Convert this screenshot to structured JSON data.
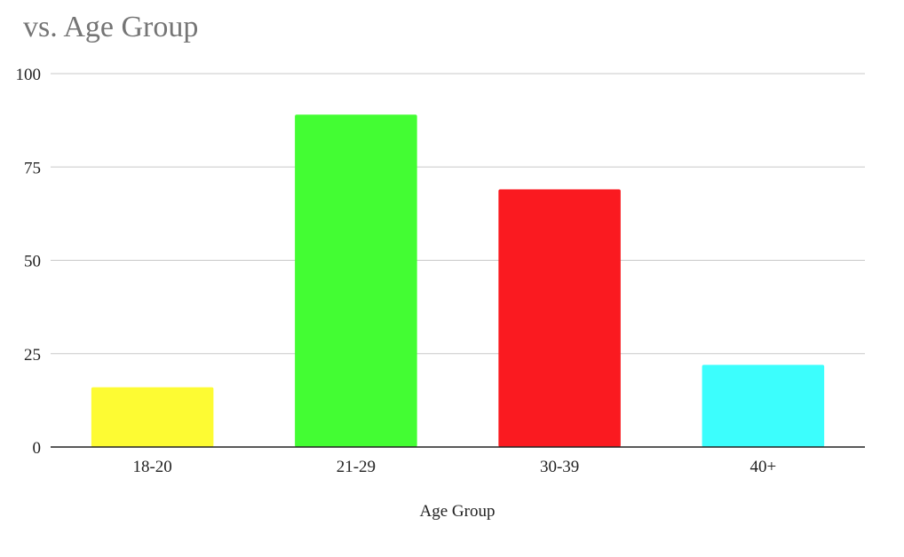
{
  "chart_data": {
    "type": "bar",
    "title": "vs. Age Group",
    "xlabel": "Age Group",
    "ylabel": "",
    "categories": [
      "18-20",
      "21-29",
      "30-39",
      "40+"
    ],
    "values": [
      16,
      89,
      69,
      22
    ],
    "colors": [
      "#fdfb33",
      "#43fd33",
      "#fa1a20",
      "#3cfefd"
    ],
    "ylim": [
      0,
      100
    ],
    "yticks": [
      0,
      25,
      50,
      75,
      100
    ],
    "grid": true,
    "legend": "none"
  },
  "style": {
    "gridline_color": "#c8c8c8",
    "axis_color": "#222222"
  }
}
